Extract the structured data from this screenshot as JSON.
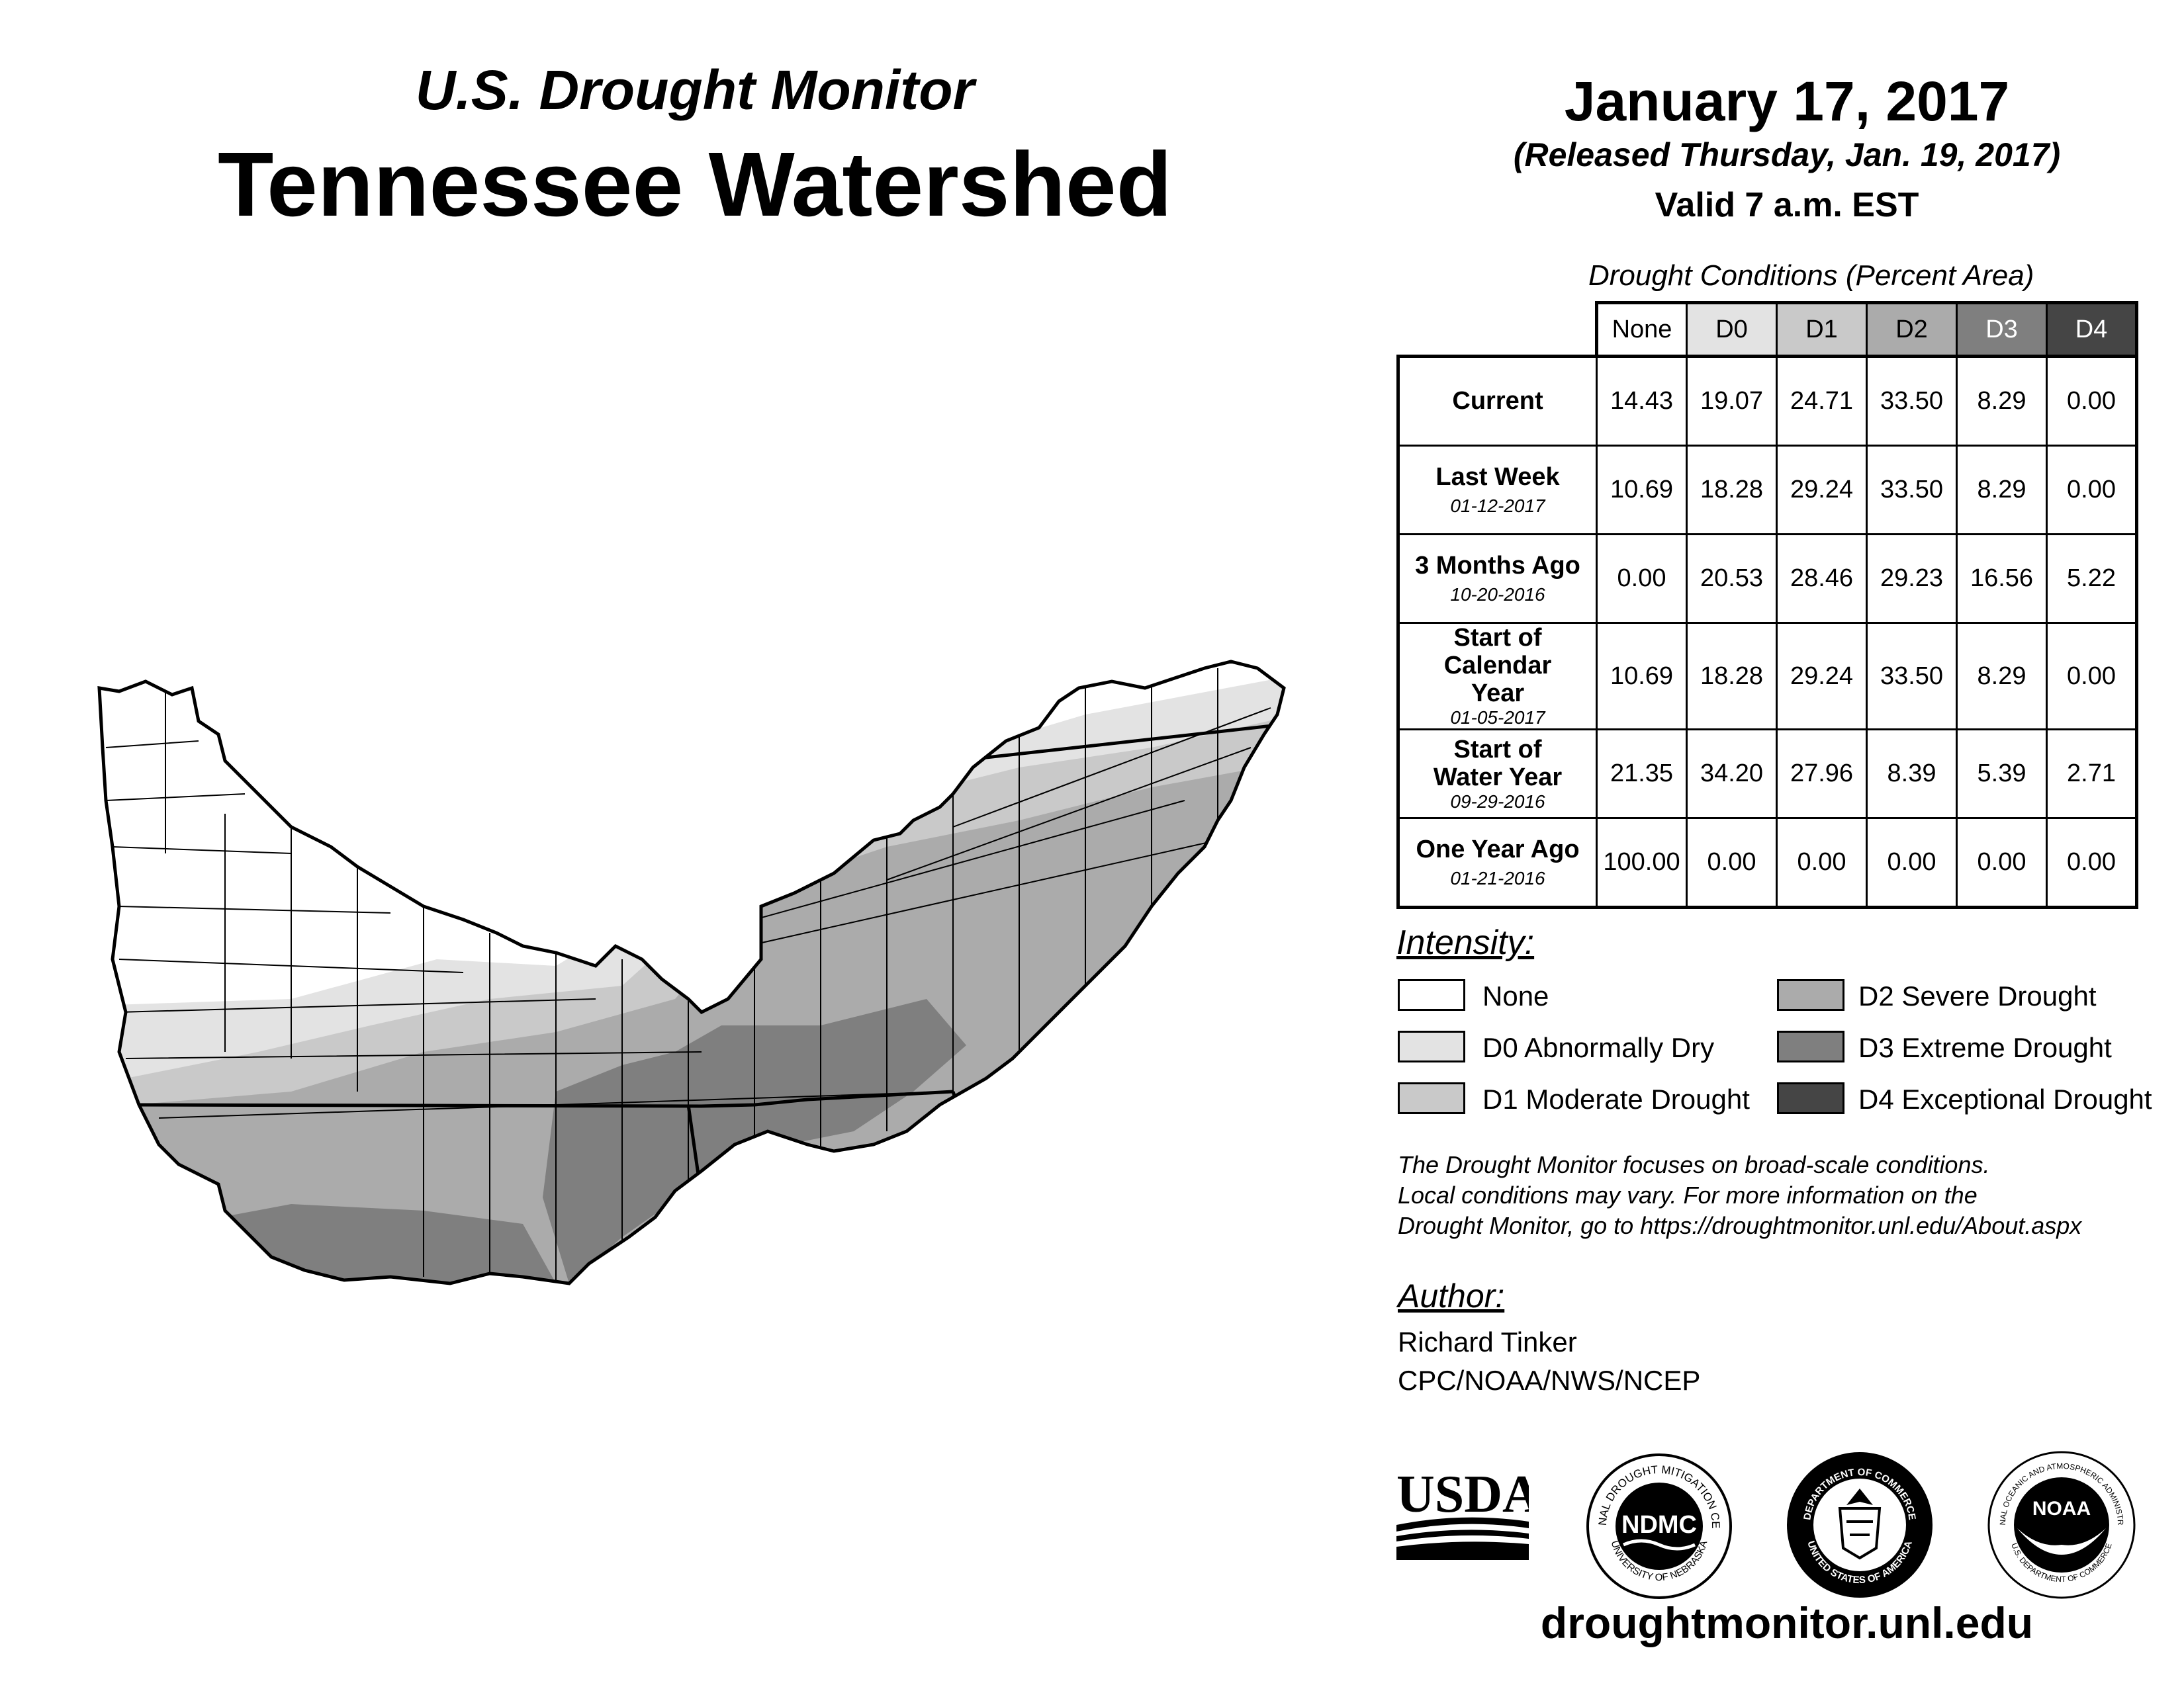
{
  "header": {
    "subtitle": "U.S. Drought Monitor",
    "title": "Tennessee Watershed",
    "date": "January 17, 2017",
    "released": "(Released Thursday, Jan. 19, 2017)",
    "valid": "Valid 7 a.m. EST"
  },
  "table": {
    "caption": "Drought Conditions (Percent Area)",
    "columns": [
      "None",
      "D0",
      "D1",
      "D2",
      "D3",
      "D4"
    ],
    "rows": [
      {
        "label": "Current",
        "date": "",
        "values": [
          "14.43",
          "19.07",
          "24.71",
          "33.50",
          "8.29",
          "0.00"
        ]
      },
      {
        "label": "Last Week",
        "date": "01-12-2017",
        "values": [
          "10.69",
          "18.28",
          "29.24",
          "33.50",
          "8.29",
          "0.00"
        ]
      },
      {
        "label": "3 Months Ago",
        "date": "10-20-2016",
        "values": [
          "0.00",
          "20.53",
          "28.46",
          "29.23",
          "16.56",
          "5.22"
        ]
      },
      {
        "label": "Start of Calendar Year",
        "date": "01-05-2017",
        "values": [
          "10.69",
          "18.28",
          "29.24",
          "33.50",
          "8.29",
          "0.00"
        ]
      },
      {
        "label": "Start of Water Year",
        "date": "09-29-2016",
        "values": [
          "21.35",
          "34.20",
          "27.96",
          "8.39",
          "5.39",
          "2.71"
        ]
      },
      {
        "label": "One Year Ago",
        "date": "01-21-2016",
        "values": [
          "100.00",
          "0.00",
          "0.00",
          "0.00",
          "0.00",
          "0.00"
        ]
      }
    ]
  },
  "legend": {
    "title": "Intensity:",
    "items": [
      {
        "label": "None",
        "color": "#ffffff"
      },
      {
        "label": "D0 Abnormally Dry",
        "color": "#e3e3e3"
      },
      {
        "label": "D1 Moderate Drought",
        "color": "#c9c9c9"
      },
      {
        "label": "D2 Severe Drought",
        "color": "#ababab"
      },
      {
        "label": "D3 Extreme Drought",
        "color": "#7f7f7f"
      },
      {
        "label": "D4 Exceptional Drought",
        "color": "#454545"
      }
    ]
  },
  "note": {
    "line1": "The Drought Monitor focuses on broad-scale conditions.",
    "line2": "Local conditions may vary. For more information on the",
    "line3": "Drought Monitor, go to https://droughtmonitor.unl.edu/About.aspx"
  },
  "author": {
    "title": "Author:",
    "name": "Richard Tinker",
    "org": "CPC/NOAA/NWS/NCEP"
  },
  "logos": {
    "usda": "USDA",
    "ndmc": "NDMC",
    "ndmc_top": "NATIONAL DROUGHT MITIGATION CENTER",
    "ndmc_bottom": "UNIVERSITY OF NEBRASKA",
    "doc_top": "DEPARTMENT OF COMMERCE",
    "doc_bottom": "UNITED STATES OF AMERICA",
    "noaa": "NOAA",
    "noaa_top": "NATIONAL OCEANIC AND ATMOSPHERIC ADMINISTRATION",
    "noaa_bottom": "U.S. DEPARTMENT OF COMMERCE"
  },
  "footer": {
    "site": "droughtmonitor.unl.edu"
  }
}
